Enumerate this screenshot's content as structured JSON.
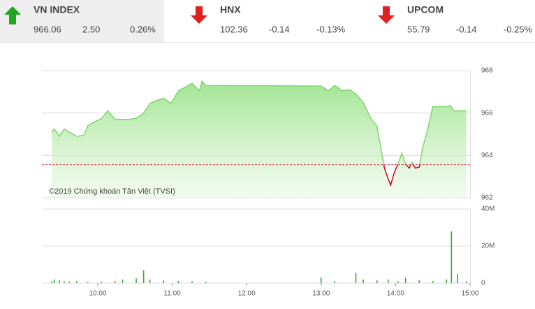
{
  "header": {
    "indices": [
      {
        "name": "VN INDEX",
        "value": "966.06",
        "change": "2.50",
        "percent": "0.26%",
        "trend": "up",
        "color": "#22a722",
        "selected": true
      },
      {
        "name": "HNX",
        "value": "102.36",
        "change": "-0.14",
        "percent": "-0.13%",
        "trend": "down",
        "color": "#e0201f",
        "selected": false
      },
      {
        "name": "UPCOM",
        "value": "55.79",
        "change": "-0.14",
        "percent": "-0.25%",
        "trend": "down",
        "color": "#e0201f",
        "selected": false
      }
    ]
  },
  "chart_data": [
    {
      "type": "area",
      "watermark": "©2019 Chứng khoán Tân Việt (TVSI)",
      "x": [
        "09:23",
        "09:25",
        "09:29",
        "09:33",
        "09:37",
        "09:43",
        "09:49",
        "09:52",
        "09:57",
        "10:03",
        "10:08",
        "10:14",
        "10:20",
        "10:25",
        "10:31",
        "10:37",
        "10:42",
        "10:48",
        "10:53",
        "10:59",
        "11:05",
        "11:10",
        "11:16",
        "11:22",
        "11:24",
        "11:27",
        "13:00",
        "13:06",
        "13:11",
        "13:17",
        "13:23",
        "13:28",
        "13:34",
        "13:40",
        "13:45",
        "13:48",
        "13:51",
        "13:54",
        "13:56",
        "13:59",
        "14:02",
        "14:05",
        "14:08",
        "14:11",
        "14:13",
        "14:16",
        "14:19",
        "14:22",
        "14:26",
        "14:30",
        "14:36",
        "14:41",
        "14:44",
        "14:47",
        "14:57"
      ],
      "values": [
        965.1,
        965.25,
        964.9,
        965.25,
        965.1,
        964.9,
        964.95,
        965.4,
        965.57,
        965.74,
        966.1,
        965.7,
        965.7,
        965.7,
        965.75,
        966.0,
        966.45,
        966.6,
        966.7,
        966.45,
        967.05,
        967.2,
        967.4,
        967.05,
        967.5,
        967.3,
        967.27,
        967.05,
        967.3,
        967.05,
        967.1,
        966.9,
        966.5,
        965.74,
        965.4,
        964.4,
        963.4,
        962.9,
        962.6,
        963.2,
        963.6,
        964.1,
        963.6,
        963.4,
        963.7,
        963.4,
        963.45,
        964.4,
        965.25,
        966.3,
        966.3,
        966.3,
        966.35,
        966.1,
        966.1
      ],
      "color": "#7ed66e",
      "below_color": "#d0021b",
      "reference": 963.56,
      "xlim": [
        "09:15",
        "15:00"
      ],
      "ylim": [
        962,
        968
      ],
      "yticks": [
        962,
        964,
        966,
        968
      ],
      "grid": true
    },
    {
      "type": "bar",
      "x": [
        "09:23",
        "09:25",
        "09:29",
        "09:33",
        "09:37",
        "09:43",
        "09:52",
        "10:03",
        "10:14",
        "10:20",
        "10:31",
        "10:37",
        "10:42",
        "10:53",
        "11:05",
        "11:16",
        "11:27",
        "13:00",
        "13:11",
        "13:28",
        "13:34",
        "13:45",
        "13:54",
        "14:02",
        "14:08",
        "14:19",
        "14:30",
        "14:41",
        "14:45",
        "14:50",
        "14:57"
      ],
      "values": [
        1000000,
        2000000,
        1500000,
        1000000,
        800000,
        1000000,
        600000,
        800000,
        1000000,
        2000000,
        2500000,
        7000000,
        2000000,
        1500000,
        1200000,
        1000000,
        800000,
        3000000,
        1000000,
        5500000,
        2000000,
        1500000,
        2000000,
        1000000,
        3000000,
        1500000,
        1000000,
        2000000,
        28000000,
        5000000,
        1000000
      ],
      "color": "#3aa53a",
      "xlim": [
        "09:15",
        "15:00"
      ],
      "ylim": [
        0,
        40000000
      ],
      "yticks": [
        0,
        {
          "value": 20000000,
          "label": "20M"
        },
        {
          "value": 40000000,
          "label": "40M"
        }
      ],
      "xticks": [
        "10:00",
        "11:00",
        "12:00",
        "13:00",
        "14:00",
        "15:00"
      ],
      "grid": true
    }
  ]
}
